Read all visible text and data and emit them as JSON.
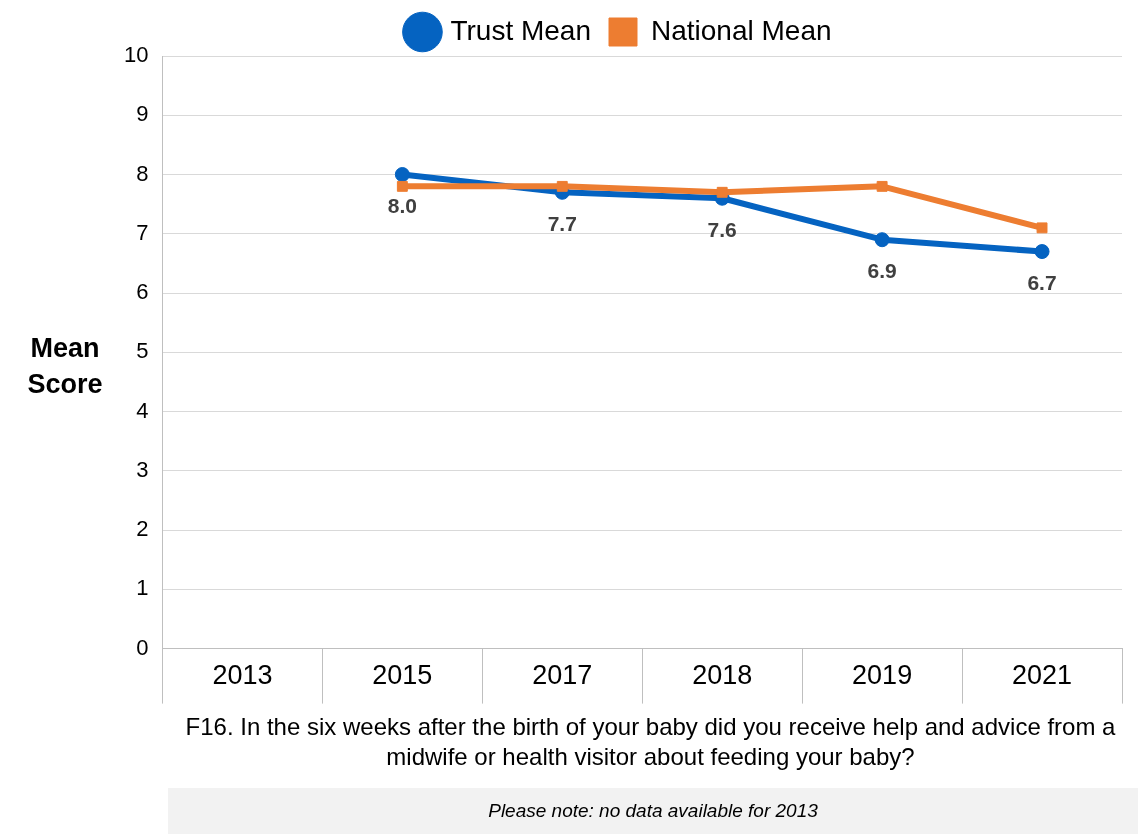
{
  "chart_data": {
    "type": "line",
    "categories": [
      "2013",
      "2015",
      "2017",
      "2018",
      "2019",
      "2021"
    ],
    "series": [
      {
        "name": "Trust Mean",
        "color": "#0563c1",
        "marker": "circle",
        "values": [
          null,
          8.0,
          7.7,
          7.6,
          6.9,
          6.7
        ],
        "value_labels": [
          null,
          "8.0",
          "7.7",
          "7.6",
          "6.9",
          "6.7"
        ]
      },
      {
        "name": "National Mean",
        "color": "#ed7d31",
        "marker": "square",
        "values": [
          null,
          7.8,
          7.8,
          7.7,
          7.8,
          7.1
        ]
      }
    ],
    "ylabel": "Mean Score",
    "xlabel": "F16. In the six weeks after the birth of your baby did you receive help and advice from a midwife or health visitor about feeding your baby?",
    "annotations": [
      "Please note: no data available for 2013"
    ],
    "ylim": [
      0,
      10
    ],
    "yticks": [
      0,
      1,
      2,
      3,
      4,
      5,
      6,
      7,
      8,
      9,
      10
    ],
    "grid": "y",
    "legend": "top",
    "line_style": "solid"
  }
}
